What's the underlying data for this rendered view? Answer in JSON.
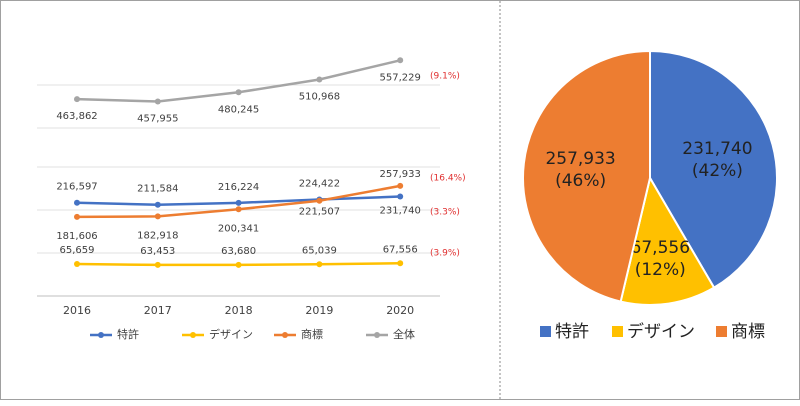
{
  "chart_data": [
    {
      "type": "line",
      "categories": [
        "2016",
        "2017",
        "2018",
        "2019",
        "2020"
      ],
      "series": [
        {
          "name": "特許",
          "color": "#4472c4",
          "values": [
            216597,
            211584,
            216224,
            224422,
            231740
          ],
          "value_labels": [
            "216,597",
            "211,584",
            "216,224",
            "224,422",
            "231,740"
          ],
          "annotation": "(3.3%)"
        },
        {
          "name": "デザイン",
          "color": "#ffc000",
          "values": [
            65659,
            63453,
            63680,
            65039,
            67556
          ],
          "value_labels": [
            "65,659",
            "63,453",
            "63,680",
            "65,039",
            "67,556"
          ],
          "annotation": "(3.9%)"
        },
        {
          "name": "商標",
          "color": "#ed7d31",
          "values": [
            181606,
            182918,
            200341,
            221507,
            257933
          ],
          "value_labels": [
            "181,606",
            "182,918",
            "200,341",
            "221,507",
            "257,933"
          ],
          "annotation": "(16.4%)"
        },
        {
          "name": "全体",
          "color": "#a5a5a5",
          "values": [
            463862,
            457955,
            480245,
            510968,
            557229
          ],
          "value_labels": [
            "463,862",
            "457,955",
            "480,245",
            "510,968",
            "557,229"
          ],
          "annotation": "(9.1%)"
        }
      ],
      "ylim_segments": [
        [
          50000,
          270000
        ],
        [
          440000,
          570000
        ]
      ],
      "legend": "bottom"
    },
    {
      "type": "pie",
      "categories": [
        "特許",
        "デザイン",
        "商標"
      ],
      "colors": [
        "#4472c4",
        "#ffc000",
        "#ed7d31"
      ],
      "values": [
        231740,
        67556,
        257933
      ],
      "value_labels": [
        "231,740",
        "67,556",
        "257,933"
      ],
      "percent_labels": [
        "(42%)",
        "(12%)",
        "(46%)"
      ],
      "legend": "bottom"
    }
  ]
}
